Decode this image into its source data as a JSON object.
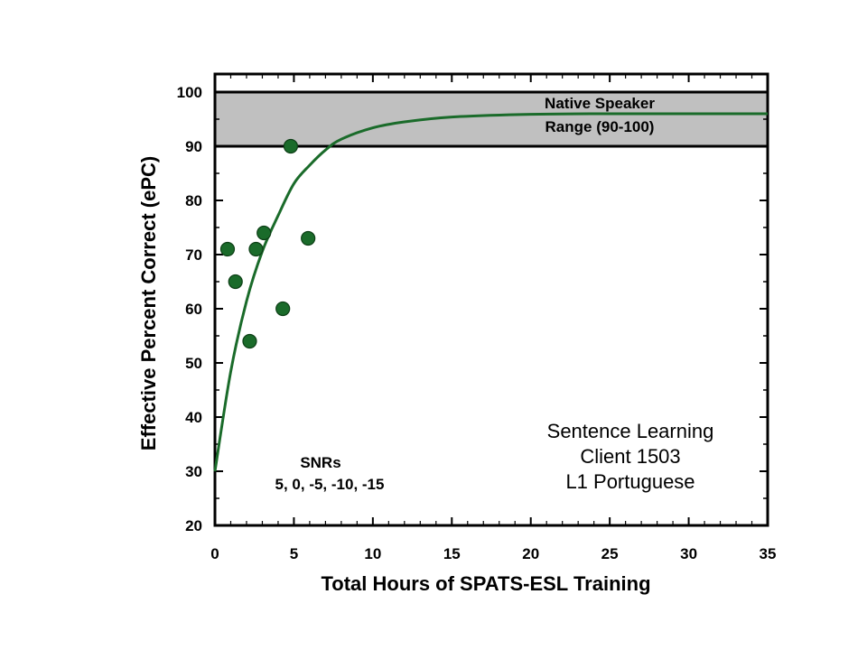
{
  "chart_data": {
    "type": "scatter",
    "xlabel": "Total Hours of SPATS-ESL Training",
    "ylabel": "Effective Percent Correct (ePC)",
    "xlim": [
      0,
      35
    ],
    "ylim": [
      20,
      100
    ],
    "xticks": [
      0,
      5,
      10,
      15,
      20,
      25,
      30,
      35
    ],
    "yticks": [
      20,
      30,
      40,
      50,
      60,
      70,
      80,
      90,
      100
    ],
    "grid": false,
    "series": [
      {
        "kind": "points",
        "color": "#1a6b2a",
        "points": [
          {
            "x": 0.8,
            "y": 71
          },
          {
            "x": 1.3,
            "y": 65
          },
          {
            "x": 2.2,
            "y": 54
          },
          {
            "x": 2.6,
            "y": 71
          },
          {
            "x": 3.1,
            "y": 74
          },
          {
            "x": 4.3,
            "y": 60
          },
          {
            "x": 4.8,
            "y": 90
          },
          {
            "x": 5.9,
            "y": 73
          }
        ]
      },
      {
        "kind": "fit-curve",
        "color": "#1a6b2a",
        "points": [
          {
            "x": 0,
            "y": 30
          },
          {
            "x": 1,
            "y": 48.4
          },
          {
            "x": 2,
            "y": 61.4
          },
          {
            "x": 3,
            "y": 70.6
          },
          {
            "x": 4,
            "y": 77.2
          },
          {
            "x": 5,
            "y": 83.1
          },
          {
            "x": 6,
            "y": 86.5
          },
          {
            "x": 7,
            "y": 89.3
          },
          {
            "x": 8,
            "y": 91.3
          },
          {
            "x": 10,
            "y": 93.4
          },
          {
            "x": 12,
            "y": 94.5
          },
          {
            "x": 15,
            "y": 95.4
          },
          {
            "x": 20,
            "y": 95.9
          },
          {
            "x": 25,
            "y": 96
          },
          {
            "x": 35,
            "y": 96
          }
        ]
      }
    ],
    "band": {
      "y_from": 90,
      "y_to": 100,
      "color": "#c0c0c0",
      "label_line1": "Native Speaker",
      "label_line2": "Range (90-100)"
    },
    "annotations": {
      "snr_title": "SNRs",
      "snr_values": "5, 0, -5, -10, -15",
      "info_line1": "Sentence Learning",
      "info_line2": "Client 1503",
      "info_line3": "L1 Portuguese"
    }
  }
}
